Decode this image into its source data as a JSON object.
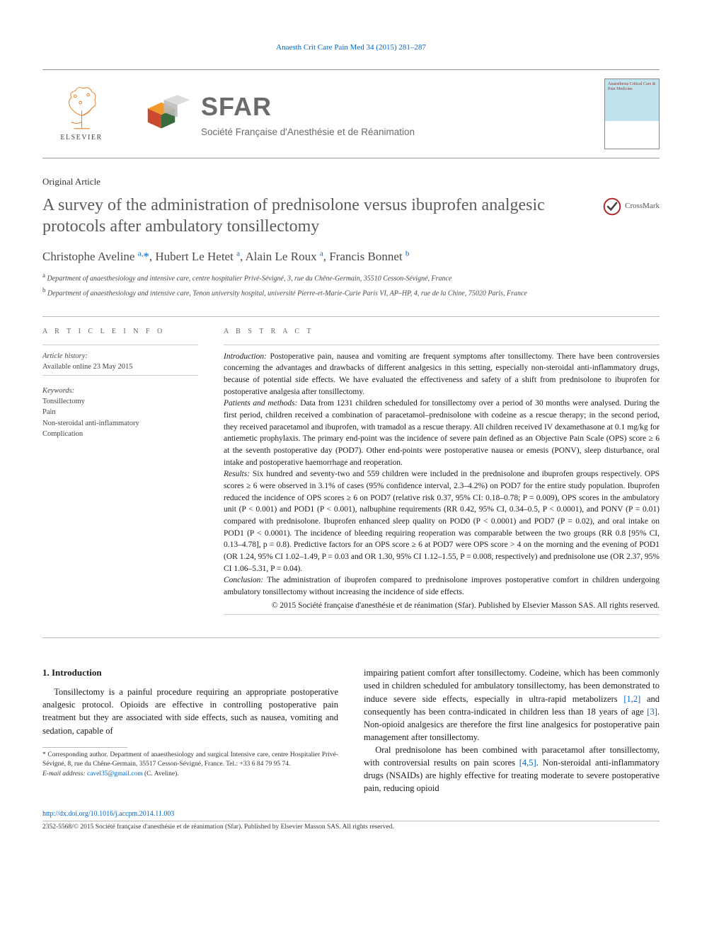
{
  "header_link": "Anaesth Crit Care Pain Med 34 (2015) 281–287",
  "publisher": {
    "elsevier": "ELSEVIER",
    "sfar_abbr": "SFAR",
    "sfar_full": "Société Française d'Anesthésie et de Réanimation",
    "cover_text": "Anaesthesia Critical Care & Pain Medicine"
  },
  "article_type": "Original Article",
  "title": "A survey of the administration of prednisolone versus ibuprofen analgesic protocols after ambulatory tonsillectomy",
  "crossmark": "CrossMark",
  "authors_html": "Christophe Aveline <sup>a,</sup><span class='star'>*</span>, Hubert Le Hetet <sup>a</sup>, Alain Le Roux <sup>a</sup>, Francis Bonnet <sup>b</sup>",
  "affiliations": {
    "a": "Department of anaesthesiology and intensive care, centre hospitalier Privé-Sévigné, 3, rue du Chêne-Germain, 35510 Cesson-Sévigné, France",
    "b": "Department of anaesthesiology and intensive care, Tenon university hospital, université Pierre-et-Marie-Curie Paris VI, AP–HP, 4, rue de la Chine, 75020 Paris, France"
  },
  "article_info": {
    "head": "A R T I C L E  I N F O",
    "history_label": "Article history:",
    "history": "Available online 23 May 2015",
    "kw_label": "Keywords:",
    "keywords": [
      "Tonsillectomy",
      "Pain",
      "Non-steroidal anti-inflammatory",
      "Complication"
    ]
  },
  "abstract": {
    "head": "A B S T R A C T",
    "intro_label": "Introduction:",
    "intro": " Postoperative pain, nausea and vomiting are frequent symptoms after tonsillectomy. There have been controversies concerning the advantages and drawbacks of different analgesics in this setting, especially non-steroidal anti-inflammatory drugs, because of potential side effects. We have evaluated the effectiveness and safety of a shift from prednisolone to ibuprofen for postoperative analgesia after tonsillectomy.",
    "methods_label": "Patients and methods:",
    "methods": " Data from 1231 children scheduled for tonsillectomy over a period of 30 months were analysed. During the first period, children received a combination of paracetamol–prednisolone with codeine as a rescue therapy; in the second period, they received paracetamol and ibuprofen, with tramadol as a rescue therapy. All children received IV dexamethasone at 0.1 mg/kg for antiemetic prophylaxis. The primary end-point was the incidence of severe pain defined as an Objective Pain Scale (OPS) score ≥ 6 at the seventh postoperative day (POD7). Other end-points were postoperative nausea or emesis (PONV), sleep disturbance, oral intake and postoperative haemorrhage and reoperation.",
    "results_label": "Results:",
    "results": " Six hundred and seventy-two and 559 children were included in the prednisolone and ibuprofen groups respectively. OPS scores ≥ 6 were observed in 3.1% of cases (95% confidence interval, 2.3–4.2%) on POD7 for the entire study population. Ibuprofen reduced the incidence of OPS scores ≥ 6 on POD7 (relative risk 0.37, 95% CI: 0.18–0.78; P = 0.009), OPS scores in the ambulatory unit (P < 0.001) and POD1 (P < 0.001), nalbuphine requirements (RR 0.42, 95% CI, 0.34–0.5, P < 0.0001), and PONV (P = 0.01) compared with prednisolone. Ibuprofen enhanced sleep quality on POD0 (P < 0.0001) and POD7 (P = 0.02), and oral intake on POD1 (P < 0.0001). The incidence of bleeding requiring reoperation was comparable between the two groups (RR 0.8 [95% CI, 0.13–4.78], p = 0.8). Predictive factors for an OPS score ≥ 6 at POD7 were OPS score > 4 on the morning and the evening of POD1 (OR 1.24, 95% CI 1.02–1.49, P = 0.03 and OR 1.30, 95% CI 1.12–1.55, P = 0.008, respectively) and prednisolone use (OR 2.37, 95% CI 1.06–5.31, P = 0.04).",
    "conclusion_label": "Conclusion:",
    "conclusion": " The administration of ibuprofen compared to prednisolone improves postoperative comfort in children undergoing ambulatory tonsillectomy without increasing the incidence of side effects.",
    "copyright": "© 2015 Société française d'anesthésie et de réanimation (Sfar). Published by Elsevier Masson SAS. All rights reserved."
  },
  "section": {
    "head": "1. Introduction",
    "p1": "Tonsillectomy is a painful procedure requiring an appropriate postoperative analgesic protocol. Opioids are effective in controlling postoperative pain treatment but they are associated with side effects, such as nausea, vomiting and sedation, capable of",
    "p2a": "impairing patient comfort after tonsillectomy. Codeine, which has been commonly used in children scheduled for ambulatory tonsillectomy, has been demonstrated to induce severe side effects, especially in ultra-rapid metabolizers ",
    "p2_ref1": "[1,2]",
    "p2b": " and consequently has been contra-indicated in children less than 18 years of age ",
    "p2_ref2": "[3]",
    "p2c": ". Non-opioid analgesics are therefore the first line analgesics for postoperative pain management after tonsillectomy.",
    "p3a": "Oral prednisolone has been combined with paracetamol after tonsillectomy, with controversial results on pain scores ",
    "p3_ref": "[4,5]",
    "p3b": ". Non-steroidal anti-inflammatory drugs (NSAIDs) are highly effective for treating moderate to severe postoperative pain, reducing opioid"
  },
  "footnote": {
    "corr": "* Corresponding author. Department of anaesthesiology and surgical Intensive care, centre Hospitalier Privé-Sévigné, 8, rue du Chêne-Germain, 35517 Cesson-Sévigné, France. Tel.: +33 6 84 79 95 74.",
    "email_label": "E-mail address:",
    "email": "cavel35@gmail.com",
    "email_who": " (C. Aveline)."
  },
  "doi": "http://dx.doi.org/10.1016/j.accpm.2014.11.003",
  "issn_line": "2352-5568/© 2015 Société française d'anesthésie et de réanimation (Sfar). Published by Elsevier Masson SAS. All rights reserved.",
  "colors": {
    "link": "#0066cc",
    "elsevier_orange": "#e67817",
    "sfar_grey": "#6b6b6b",
    "rule": "#bbb"
  }
}
